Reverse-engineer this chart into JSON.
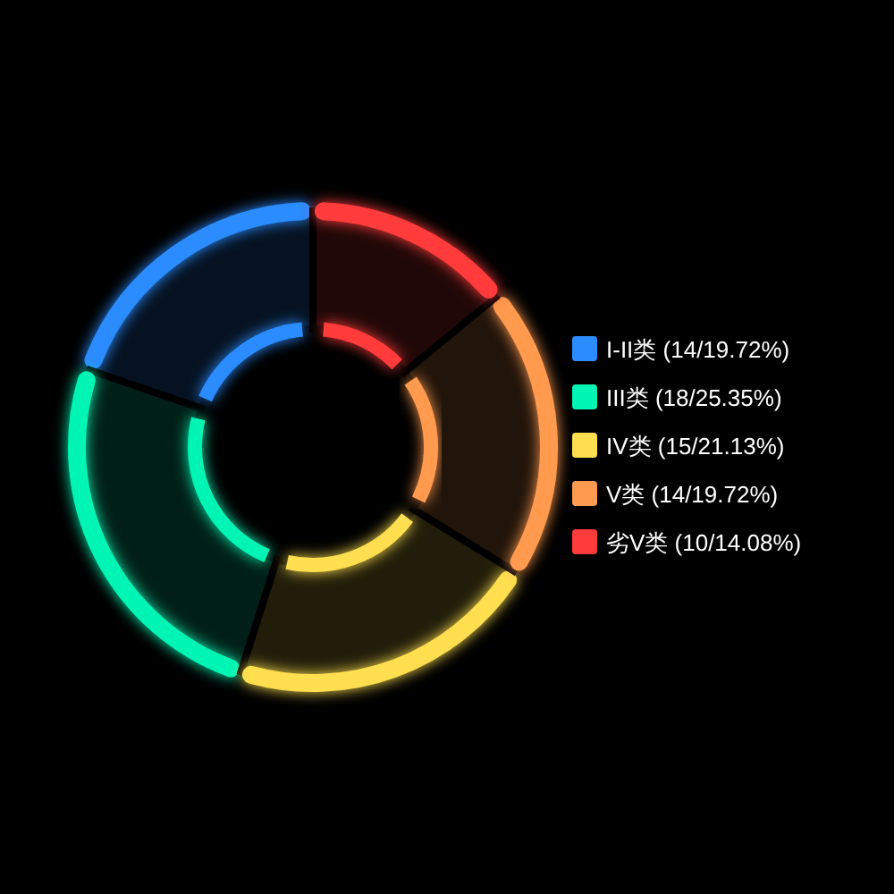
{
  "chart_data": {
    "type": "donut",
    "categories": [
      "I-II类",
      "III类",
      "IV类",
      "V类",
      "劣V类"
    ],
    "values": [
      14,
      18,
      15,
      14,
      10
    ],
    "value_labels": [
      "(14/19.72%)",
      "(18/25.35%)",
      "(15/21.13%)",
      "(14/19.72%)",
      "(10/14.08%)"
    ],
    "colors": [
      "#2b8cff",
      "#00f5b4",
      "#ffdf4f",
      "#ff9a50",
      "#ff3b3b"
    ],
    "legend": "right"
  }
}
